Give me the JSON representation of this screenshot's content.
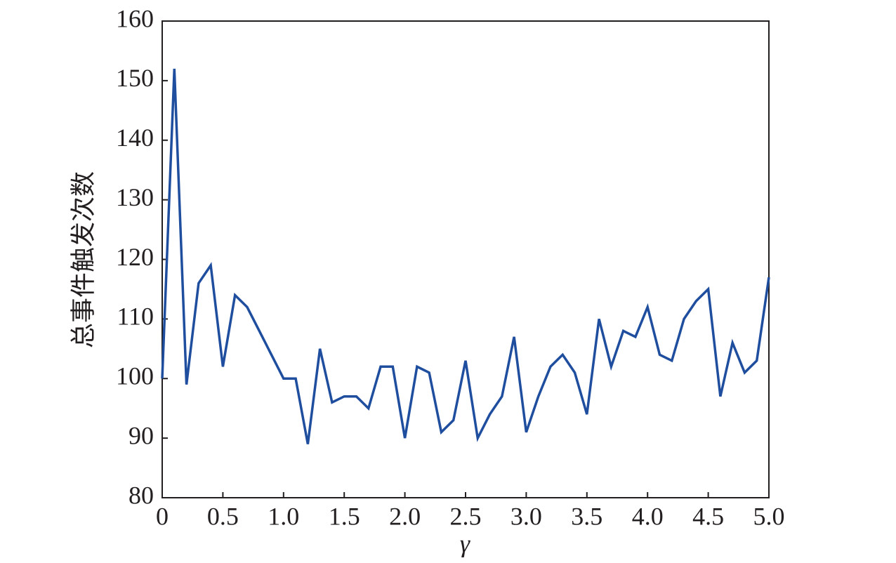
{
  "chart_data": {
    "type": "line",
    "xlabel": "γ",
    "ylabel": "总事件触发次数",
    "x": [
      0,
      0.1,
      0.2,
      0.3,
      0.4,
      0.5,
      0.6,
      0.7,
      0.8,
      0.9,
      1.0,
      1.1,
      1.2,
      1.3,
      1.4,
      1.5,
      1.6,
      1.7,
      1.8,
      1.9,
      2.0,
      2.1,
      2.2,
      2.3,
      2.4,
      2.5,
      2.6,
      2.7,
      2.8,
      2.9,
      3.0,
      3.1,
      3.2,
      3.3,
      3.4,
      3.5,
      3.6,
      3.7,
      3.8,
      3.9,
      4.0,
      4.1,
      4.2,
      4.3,
      4.4,
      4.5,
      4.6,
      4.7,
      4.8,
      4.9,
      5.0
    ],
    "series": [
      {
        "color": "#1f4e9e",
        "values": [
          100,
          152,
          99,
          116,
          119,
          102,
          114,
          112,
          108,
          104,
          100,
          100,
          89,
          105,
          96,
          97,
          97,
          95,
          102,
          102,
          90,
          102,
          101,
          91,
          93,
          103,
          90,
          94,
          97,
          107,
          91,
          97,
          102,
          104,
          101,
          94,
          110,
          102,
          108,
          107,
          112,
          104,
          103,
          110,
          113,
          115,
          97,
          106,
          101,
          103,
          117
        ]
      }
    ],
    "xlim": [
      0,
      5.0
    ],
    "xticks": [
      0,
      0.5,
      {
        "value": 1,
        "label": "1.0"
      },
      1.5,
      {
        "value": 2,
        "label": "2.0"
      },
      2.5,
      {
        "value": 3,
        "label": "3.0"
      },
      3.5,
      {
        "value": 4,
        "label": "4.0"
      },
      4.5,
      {
        "value": 5,
        "label": "5.0"
      }
    ],
    "ylim": [
      80,
      160
    ],
    "yticks": [
      80,
      90,
      100,
      110,
      120,
      130,
      140,
      150,
      160
    ]
  }
}
